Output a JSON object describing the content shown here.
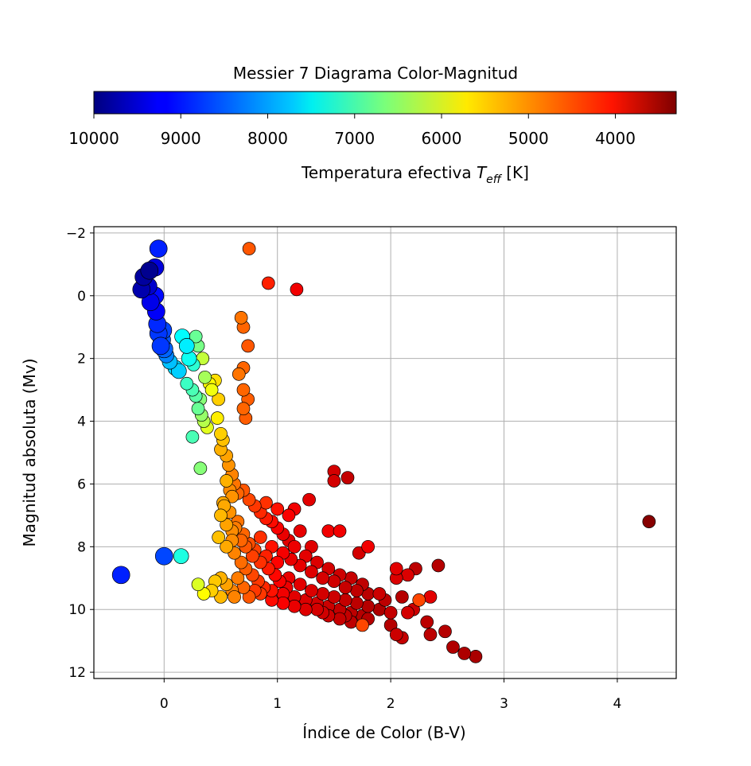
{
  "colors": {
    "background": "#ffffff",
    "grid": "#b0b0b0",
    "axis": "#000000",
    "marker_edge": "#000000",
    "colormap": "jet"
  },
  "colorbar": {
    "title": "Messier 7 Diagrama Color-Magnitud",
    "label_main": "Temperatura efectiva ",
    "label_symbol": "T",
    "label_subscript": "eff",
    "label_unit": " [K]",
    "range": [
      10000,
      3300
    ],
    "ticks": [
      10000,
      9000,
      8000,
      7000,
      6000,
      5000,
      4000
    ],
    "tick_labels": [
      "10000",
      "9000",
      "8000",
      "7000",
      "6000",
      "5000",
      "4000"
    ],
    "orientation": "horizontal",
    "placement": "top"
  },
  "chart_data": {
    "type": "scatter",
    "title": "Messier 7 Diagrama Color-Magnitud",
    "xlabel": "Índice de Color (B-V)",
    "ylabel": "Magnitud absoluta (Mv)",
    "xlim": [
      -0.62,
      4.52
    ],
    "ylim": [
      12.2,
      -2.2
    ],
    "y_inverted": true,
    "grid": true,
    "xticks": [
      0,
      1,
      2,
      3,
      4
    ],
    "xtick_labels": [
      "0",
      "1",
      "2",
      "3",
      "4"
    ],
    "yticks": [
      -2,
      0,
      2,
      4,
      6,
      8,
      10,
      12
    ],
    "ytick_labels": [
      "−2",
      "0",
      "2",
      "4",
      "6",
      "8",
      "10",
      "12"
    ],
    "color_encoding": "effective temperature (K), jet colormap",
    "size_encoding": "larger markers for hotter/brighter stars",
    "point_fields": [
      "bv",
      "mv",
      "teff"
    ],
    "points": [
      [
        -0.05,
        -1.5,
        8950
      ],
      [
        -0.08,
        -0.9,
        9400
      ],
      [
        -0.13,
        -0.8,
        9900
      ],
      [
        -0.18,
        -0.6,
        9800
      ],
      [
        -0.2,
        -0.2,
        9700
      ],
      [
        -0.14,
        -0.3,
        9500
      ],
      [
        -0.12,
        0.2,
        9300
      ],
      [
        -0.08,
        0.0,
        9100
      ],
      [
        -0.07,
        0.5,
        9200
      ],
      [
        -0.06,
        0.9,
        8900
      ],
      [
        -0.05,
        1.2,
        8800
      ],
      [
        -0.02,
        1.4,
        8600
      ],
      [
        -0.03,
        1.6,
        8800
      ],
      [
        -0.01,
        1.1,
        8700
      ],
      [
        0.0,
        1.7,
        8500
      ],
      [
        0.02,
        1.9,
        8300
      ],
      [
        0.05,
        2.1,
        7900
      ],
      [
        0.1,
        2.3,
        7700
      ],
      [
        0.13,
        2.4,
        7800
      ],
      [
        0.16,
        1.3,
        7500
      ],
      [
        0.2,
        1.6,
        7600
      ],
      [
        0.22,
        2.0,
        7400
      ],
      [
        0.26,
        2.2,
        7200
      ],
      [
        0.28,
        1.3,
        6800
      ],
      [
        0.3,
        1.6,
        6700
      ],
      [
        0.2,
        2.8,
        7100
      ],
      [
        0.25,
        3.0,
        7000
      ],
      [
        0.28,
        3.2,
        6900
      ],
      [
        0.32,
        3.3,
        6600
      ],
      [
        0.34,
        2.0,
        6200
      ],
      [
        0.36,
        2.6,
        6400
      ],
      [
        0.3,
        3.6,
        6800
      ],
      [
        0.33,
        3.8,
        6500
      ],
      [
        0.35,
        4.0,
        6300
      ],
      [
        0.38,
        4.2,
        6000
      ],
      [
        0.4,
        2.8,
        5800
      ],
      [
        0.42,
        3.0,
        5900
      ],
      [
        0.45,
        2.7,
        5600
      ],
      [
        0.48,
        3.3,
        5500
      ],
      [
        0.47,
        3.9,
        5700
      ],
      [
        0.5,
        4.4,
        5500
      ],
      [
        0.52,
        4.6,
        5400
      ],
      [
        0.5,
        4.9,
        5300
      ],
      [
        0.55,
        5.1,
        5200
      ],
      [
        0.57,
        5.4,
        5100
      ],
      [
        0.6,
        5.7,
        5000
      ],
      [
        0.62,
        6.0,
        4900
      ],
      [
        0.65,
        6.3,
        4800
      ],
      [
        0.55,
        5.9,
        5300
      ],
      [
        0.6,
        6.4,
        5100
      ],
      [
        0.7,
        6.2,
        4700
      ],
      [
        0.75,
        6.5,
        4600
      ],
      [
        0.8,
        6.7,
        4500
      ],
      [
        0.85,
        6.9,
        4400
      ],
      [
        0.9,
        7.1,
        4300
      ],
      [
        0.95,
        7.2,
        4200
      ],
      [
        1.0,
        7.4,
        4100
      ],
      [
        1.05,
        7.6,
        4000
      ],
      [
        1.1,
        7.8,
        3950
      ],
      [
        0.9,
        6.6,
        4450
      ],
      [
        1.0,
        6.8,
        4250
      ],
      [
        1.1,
        7.0,
        4100
      ],
      [
        1.15,
        6.8,
        4050
      ],
      [
        0.58,
        6.2,
        5050
      ],
      [
        0.52,
        6.6,
        5250
      ],
      [
        0.5,
        7.0,
        5350
      ],
      [
        0.55,
        7.3,
        5200
      ],
      [
        0.6,
        7.5,
        5050
      ],
      [
        0.65,
        7.2,
        4900
      ],
      [
        0.7,
        7.6,
        4800
      ],
      [
        0.75,
        7.9,
        4650
      ],
      [
        0.8,
        8.1,
        4550
      ],
      [
        0.85,
        7.7,
        4450
      ],
      [
        0.9,
        8.3,
        4350
      ],
      [
        0.95,
        8.0,
        4250
      ],
      [
        1.0,
        8.5,
        4150
      ],
      [
        0.48,
        7.7,
        5400
      ],
      [
        0.55,
        8.0,
        5250
      ],
      [
        0.62,
        8.2,
        5000
      ],
      [
        0.68,
        8.5,
        4850
      ],
      [
        0.72,
        8.7,
        4750
      ],
      [
        0.78,
        8.9,
        4600
      ],
      [
        0.83,
        9.1,
        4500
      ],
      [
        0.88,
        9.3,
        4400
      ],
      [
        0.65,
        9.0,
        4950
      ],
      [
        0.7,
        9.3,
        4800
      ],
      [
        0.6,
        9.4,
        5000
      ],
      [
        0.55,
        9.2,
        5200
      ],
      [
        0.5,
        9.0,
        5300
      ],
      [
        0.45,
        9.1,
        5450
      ],
      [
        0.42,
        9.4,
        5500
      ],
      [
        0.5,
        9.6,
        5350
      ],
      [
        0.62,
        9.6,
        5000
      ],
      [
        0.75,
        9.6,
        4700
      ],
      [
        0.85,
        9.5,
        4500
      ],
      [
        0.95,
        9.4,
        4250
      ],
      [
        1.05,
        9.5,
        4050
      ],
      [
        1.15,
        9.6,
        3950
      ],
      [
        1.25,
        9.7,
        3900
      ],
      [
        1.35,
        9.8,
        3850
      ],
      [
        1.45,
        9.9,
        3800
      ],
      [
        1.55,
        10.0,
        3750
      ],
      [
        1.65,
        10.1,
        3700
      ],
      [
        1.75,
        10.2,
        3650
      ],
      [
        1.1,
        9.0,
        4000
      ],
      [
        1.2,
        9.2,
        3950
      ],
      [
        1.3,
        9.4,
        3900
      ],
      [
        1.4,
        9.5,
        3850
      ],
      [
        1.5,
        9.6,
        3800
      ],
      [
        1.6,
        9.7,
        3750
      ],
      [
        1.7,
        9.8,
        3700
      ],
      [
        1.8,
        9.9,
        3650
      ],
      [
        1.9,
        10.0,
        3600
      ],
      [
        1.2,
        8.6,
        3980
      ],
      [
        1.3,
        8.8,
        3920
      ],
      [
        1.4,
        9.0,
        3870
      ],
      [
        1.5,
        9.1,
        3820
      ],
      [
        1.6,
        9.3,
        3770
      ],
      [
        1.7,
        9.4,
        3720
      ],
      [
        1.8,
        9.5,
        3680
      ],
      [
        1.25,
        8.3,
        3960
      ],
      [
        1.35,
        8.5,
        3910
      ],
      [
        1.45,
        8.7,
        3860
      ],
      [
        1.55,
        8.9,
        3810
      ],
      [
        1.65,
        9.0,
        3760
      ],
      [
        1.75,
        9.2,
        3710
      ],
      [
        1.05,
        8.2,
        4080
      ],
      [
        1.15,
        8.0,
        4020
      ],
      [
        1.35,
        10.0,
        3860
      ],
      [
        1.45,
        10.2,
        3810
      ],
      [
        1.55,
        10.3,
        3760
      ],
      [
        1.65,
        10.4,
        3710
      ],
      [
        1.75,
        10.5,
        4600
      ],
      [
        1.4,
        10.1,
        3830
      ],
      [
        1.6,
        10.2,
        3740
      ],
      [
        1.8,
        10.3,
        3660
      ],
      [
        0.95,
        9.7,
        4200
      ],
      [
        1.05,
        9.8,
        4100
      ],
      [
        1.15,
        9.9,
        4000
      ],
      [
        1.25,
        10.0,
        3930
      ],
      [
        0.8,
        9.4,
        4500
      ],
      [
        0.78,
        8.3,
        4550
      ],
      [
        0.72,
        8.0,
        4700
      ],
      [
        0.68,
        7.8,
        4800
      ],
      [
        0.63,
        7.4,
        4950
      ],
      [
        0.58,
        6.9,
        5100
      ],
      [
        0.53,
        6.7,
        5250
      ],
      [
        0.6,
        7.8,
        5050
      ],
      [
        0.85,
        8.5,
        4450
      ],
      [
        0.92,
        8.7,
        4300
      ],
      [
        0.98,
        8.9,
        4180
      ],
      [
        1.02,
        9.1,
        4100
      ],
      [
        1.08,
        9.3,
        4020
      ],
      [
        1.12,
        8.4,
        4000
      ],
      [
        1.2,
        7.5,
        3980
      ],
      [
        1.3,
        8.0,
        3930
      ],
      [
        0.75,
        -1.5,
        4700
      ],
      [
        0.92,
        -0.4,
        4350
      ],
      [
        1.17,
        -0.2,
        4050
      ],
      [
        0.68,
        0.7,
        4900
      ],
      [
        0.7,
        1.0,
        4800
      ],
      [
        0.74,
        1.6,
        4700
      ],
      [
        0.66,
        2.5,
        4900
      ],
      [
        0.7,
        2.3,
        4800
      ],
      [
        0.7,
        3.0,
        4800
      ],
      [
        0.74,
        3.3,
        4750
      ],
      [
        0.7,
        3.6,
        4800
      ],
      [
        0.72,
        3.9,
        4750
      ],
      [
        1.5,
        5.6,
        3850
      ],
      [
        1.5,
        5.9,
        3850
      ],
      [
        1.62,
        5.8,
        3750
      ],
      [
        1.28,
        6.5,
        3950
      ],
      [
        1.45,
        7.5,
        4050
      ],
      [
        1.55,
        7.5,
        4050
      ],
      [
        1.72,
        8.2,
        3850
      ],
      [
        1.8,
        8.0,
        4050
      ],
      [
        2.05,
        8.7,
        3950
      ],
      [
        2.15,
        8.9,
        3900
      ],
      [
        2.22,
        8.7,
        3700
      ],
      [
        2.42,
        8.6,
        3650
      ],
      [
        2.05,
        9.0,
        3900
      ],
      [
        1.9,
        9.5,
        3800
      ],
      [
        1.95,
        9.7,
        3700
      ],
      [
        2.1,
        9.6,
        3650
      ],
      [
        2.25,
        9.7,
        4600
      ],
      [
        2.35,
        9.6,
        3950
      ],
      [
        2.15,
        10.1,
        3850
      ],
      [
        2.2,
        10.0,
        3800
      ],
      [
        2.0,
        10.1,
        3750
      ],
      [
        2.32,
        10.4,
        3700
      ],
      [
        2.0,
        10.5,
        3650
      ],
      [
        2.05,
        10.8,
        3800
      ],
      [
        2.1,
        10.9,
        3750
      ],
      [
        2.35,
        10.8,
        3700
      ],
      [
        2.48,
        10.7,
        3650
      ],
      [
        2.55,
        11.2,
        3620
      ],
      [
        2.65,
        11.4,
        3600
      ],
      [
        2.75,
        11.5,
        3580
      ],
      [
        4.28,
        7.2,
        3350
      ],
      [
        -0.38,
        8.9,
        8950
      ],
      [
        0.0,
        8.3,
        8700
      ],
      [
        0.15,
        8.3,
        7300
      ],
      [
        0.3,
        9.2,
        6050
      ],
      [
        0.35,
        9.5,
        5800
      ],
      [
        0.25,
        4.5,
        7000
      ],
      [
        0.32,
        5.5,
        6600
      ]
    ]
  }
}
